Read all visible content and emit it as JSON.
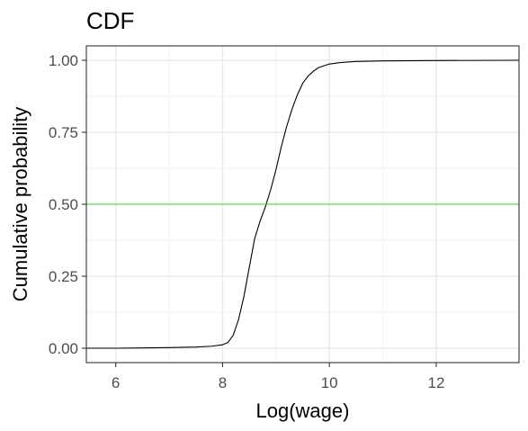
{
  "chart_data": {
    "type": "line",
    "title": "CDF",
    "xlabel": "Log(wage)",
    "ylabel": "Cumulative probability",
    "xlim": [
      5.45,
      13.55
    ],
    "ylim": [
      -0.05,
      1.05
    ],
    "x_ticks": [
      6,
      8,
      10,
      12
    ],
    "x_tick_labels": [
      "6",
      "8",
      "10",
      "12"
    ],
    "y_ticks": [
      0,
      0.25,
      0.5,
      0.75,
      1
    ],
    "y_tick_labels": [
      "0.00",
      "0.25",
      "0.50",
      "0.75",
      "1.00"
    ],
    "grid": true,
    "legend": "none",
    "series": [
      {
        "color": "#000000",
        "x": [
          5.45,
          6.0,
          6.5,
          7.0,
          7.5,
          7.8,
          8.0,
          8.1,
          8.2,
          8.3,
          8.4,
          8.5,
          8.6,
          8.7,
          8.8,
          8.9,
          9.0,
          9.1,
          9.2,
          9.3,
          9.4,
          9.5,
          9.6,
          9.7,
          9.8,
          10.0,
          10.2,
          10.5,
          11.0,
          12.0,
          13.55
        ],
        "y": [
          0.0,
          0.0,
          0.001,
          0.002,
          0.004,
          0.007,
          0.012,
          0.02,
          0.045,
          0.1,
          0.18,
          0.28,
          0.38,
          0.44,
          0.49,
          0.55,
          0.62,
          0.7,
          0.77,
          0.83,
          0.88,
          0.92,
          0.945,
          0.962,
          0.975,
          0.987,
          0.992,
          0.996,
          0.998,
          0.999,
          1.0
        ]
      },
      {
        "color": "#33dd33",
        "x": [
          5.45,
          13.55
        ],
        "y": [
          0.5,
          0.5
        ]
      }
    ]
  }
}
